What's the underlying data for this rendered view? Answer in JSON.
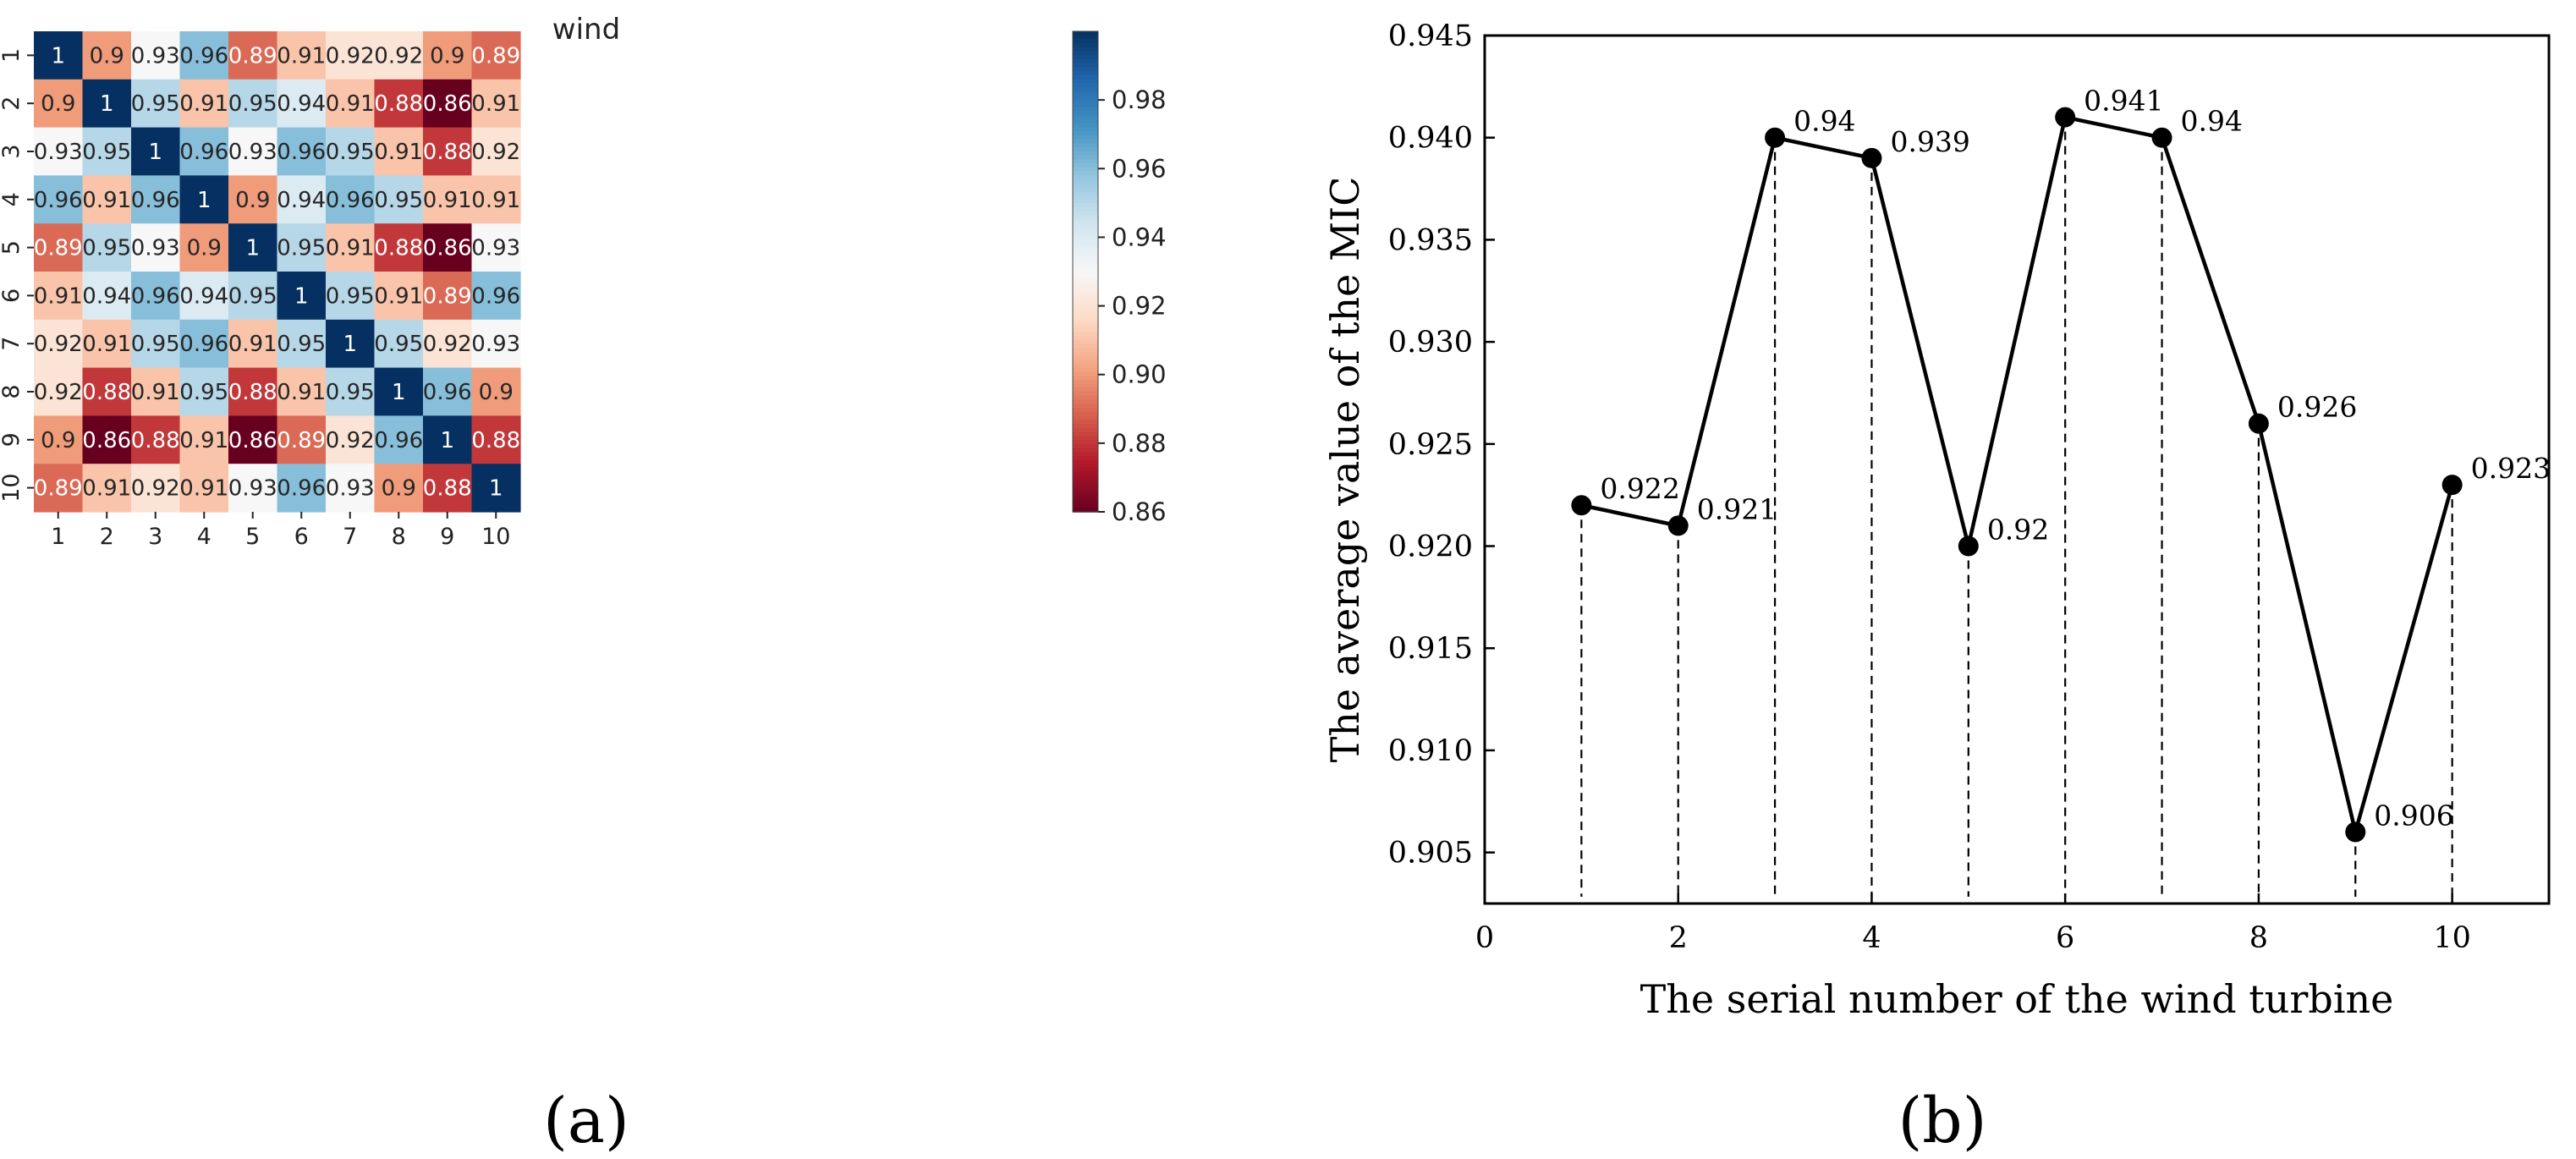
{
  "chart_data": [
    {
      "panel_label": "(a)",
      "type": "heatmap",
      "title": "wind",
      "x_labels": [
        "1",
        "2",
        "3",
        "4",
        "5",
        "6",
        "7",
        "8",
        "9",
        "10"
      ],
      "y_labels": [
        "1",
        "2",
        "3",
        "4",
        "5",
        "6",
        "7",
        "8",
        "9",
        "10"
      ],
      "values": [
        [
          1,
          0.9,
          0.93,
          0.96,
          0.89,
          0.91,
          0.92,
          0.92,
          0.9,
          0.89
        ],
        [
          0.9,
          1,
          0.95,
          0.91,
          0.95,
          0.94,
          0.91,
          0.88,
          0.86,
          0.91
        ],
        [
          0.93,
          0.95,
          1,
          0.96,
          0.93,
          0.96,
          0.95,
          0.91,
          0.88,
          0.92
        ],
        [
          0.96,
          0.91,
          0.96,
          1,
          0.9,
          0.94,
          0.96,
          0.95,
          0.91,
          0.91
        ],
        [
          0.89,
          0.95,
          0.93,
          0.9,
          1,
          0.95,
          0.91,
          0.88,
          0.86,
          0.93
        ],
        [
          0.91,
          0.94,
          0.96,
          0.94,
          0.95,
          1,
          0.95,
          0.91,
          0.89,
          0.96
        ],
        [
          0.92,
          0.91,
          0.95,
          0.96,
          0.91,
          0.95,
          1,
          0.95,
          0.92,
          0.93
        ],
        [
          0.92,
          0.88,
          0.91,
          0.95,
          0.88,
          0.91,
          0.95,
          1,
          0.96,
          0.9
        ],
        [
          0.9,
          0.86,
          0.88,
          0.91,
          0.86,
          0.89,
          0.92,
          0.96,
          1,
          0.88
        ],
        [
          0.89,
          0.91,
          0.92,
          0.91,
          0.93,
          0.96,
          0.93,
          0.9,
          0.88,
          1
        ]
      ],
      "colormap": "RdBu",
      "vmin": 0.86,
      "vmax": 1.0,
      "colorbar_ticks": [
        0.86,
        0.88,
        0.9,
        0.92,
        0.94,
        0.96,
        0.98
      ],
      "colorbar_tick_labels": [
        "0.86",
        "0.88",
        "0.90",
        "0.92",
        "0.94",
        "0.96",
        "0.98"
      ]
    },
    {
      "panel_label": "(b)",
      "type": "line",
      "x": [
        1,
        2,
        3,
        4,
        5,
        6,
        7,
        8,
        9,
        10
      ],
      "y": [
        0.922,
        0.921,
        0.94,
        0.939,
        0.92,
        0.941,
        0.94,
        0.926,
        0.906,
        0.923
      ],
      "point_labels": [
        "0.922",
        "0.921",
        "0.94",
        "0.939",
        "0.92",
        "0.941",
        "0.94",
        "0.926",
        "0.906",
        "0.923"
      ],
      "xlabel": "The serial number of the wind turbine",
      "ylabel": "The average value of the MIC",
      "xlim": [
        0,
        11
      ],
      "ylim": [
        0.9025,
        0.945
      ],
      "x_ticks": [
        0,
        2,
        4,
        6,
        8,
        10
      ],
      "x_tick_labels": [
        "0",
        "2",
        "4",
        "6",
        "8",
        "10"
      ],
      "y_ticks": [
        0.905,
        0.91,
        0.915,
        0.92,
        0.925,
        0.93,
        0.935,
        0.94,
        0.945
      ],
      "y_tick_labels": [
        "0.905",
        "0.910",
        "0.915",
        "0.920",
        "0.925",
        "0.930",
        "0.935",
        "0.940",
        "0.945"
      ],
      "drop_lines": "dashed",
      "grid": false,
      "color": "#000000"
    }
  ]
}
